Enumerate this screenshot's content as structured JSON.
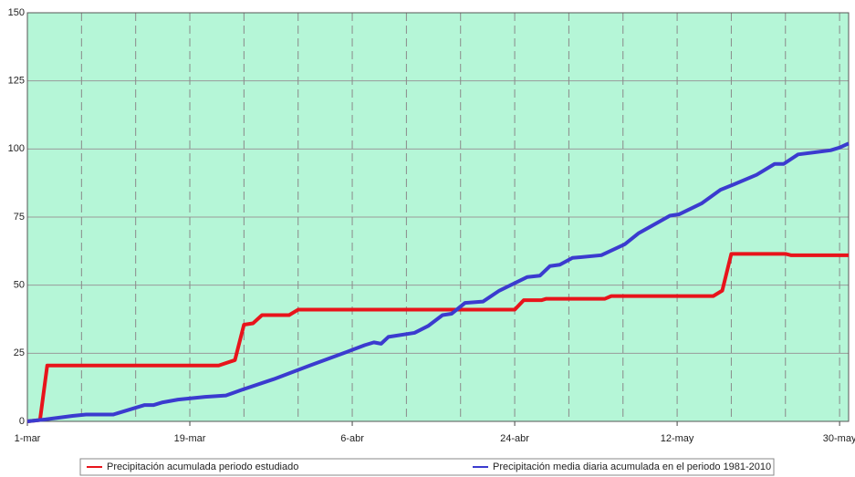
{
  "chart_data": {
    "type": "line",
    "xlim": [
      0,
      91
    ],
    "xticks": [
      {
        "value": 0,
        "label": "1-mar"
      },
      {
        "value": 18,
        "label": "19-mar"
      },
      {
        "value": 36,
        "label": "6-abr"
      },
      {
        "value": 54,
        "label": "24-abr"
      },
      {
        "value": 72,
        "label": "12-may"
      },
      {
        "value": 90,
        "label": "30-may"
      }
    ],
    "xgrid": [
      6,
      12,
      18,
      24,
      30,
      36,
      42,
      48,
      54,
      60,
      66,
      72,
      78,
      84,
      90
    ],
    "ylim": [
      0,
      150
    ],
    "yticks": [
      0,
      25,
      50,
      75,
      100,
      125,
      150
    ],
    "grid": true,
    "legend": "bottom",
    "series": [
      {
        "name": "Precipitación acumulada periodo estudiado",
        "color": "#e8141b",
        "x": [
          0,
          1.4,
          2.2,
          21.2,
          23,
          24,
          25,
          26,
          29,
          30,
          54,
          55,
          57,
          57.5,
          64,
          64.7,
          76,
          77,
          78,
          84,
          84.6,
          91
        ],
        "values": [
          0,
          0.5,
          20.5,
          20.5,
          22.5,
          35.5,
          36,
          39,
          39,
          41,
          41,
          44.5,
          44.5,
          45,
          45,
          46,
          46,
          48,
          61.5,
          61.5,
          61,
          61
        ]
      },
      {
        "name": "Precipitación media diaria acumulada en el periodo 1981-2010",
        "color": "#3b3bcf",
        "x": [
          0,
          2,
          5,
          6.5,
          9.5,
          13,
          14,
          15,
          16.7,
          19.7,
          22,
          23.7,
          27.3,
          31.3,
          35.4,
          37.4,
          38.4,
          39.2,
          40,
          42.9,
          44.4,
          46,
          47,
          48.5,
          50.5,
          52.3,
          55.4,
          56.8,
          57.9,
          59,
          60.4,
          63.6,
          66.2,
          67.7,
          71.2,
          72.2,
          74.7,
          76.8,
          78.3,
          80.8,
          82.8,
          83.8,
          85.4,
          89,
          90,
          91
        ],
        "values": [
          0,
          0.7,
          2,
          2.5,
          2.5,
          6,
          6,
          7,
          8,
          9,
          9.5,
          11.5,
          15.5,
          20.5,
          25.5,
          28,
          29,
          28.5,
          31,
          32.5,
          35,
          39,
          39.5,
          43.5,
          44,
          48,
          53,
          53.5,
          57,
          57.5,
          60,
          61,
          65,
          69,
          75.5,
          76,
          80,
          85,
          87,
          90.5,
          94.5,
          94.5,
          98,
          99.5,
          100.5,
          102
        ]
      }
    ]
  }
}
